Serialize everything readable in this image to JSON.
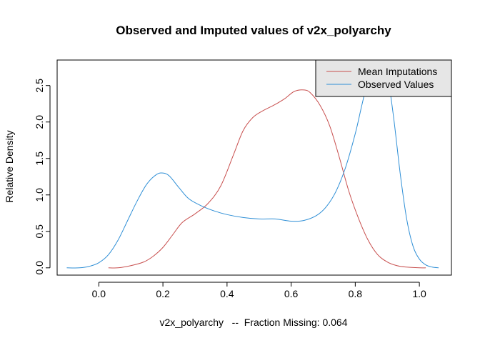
{
  "chart_data": {
    "type": "line",
    "title": "Observed and Imputed values of v2x_polyarchy",
    "xlabel": "v2x_polyarchy   --  Fraction Missing: 0.064",
    "ylabel": "Relative Density",
    "xlim": [
      -0.13,
      1.1
    ],
    "ylim": [
      -0.1,
      2.85
    ],
    "x_ticks": [
      0.0,
      0.2,
      0.4,
      0.6,
      0.8,
      1.0
    ],
    "x_tick_labels": [
      "0.0",
      "0.2",
      "0.4",
      "0.6",
      "0.8",
      "1.0"
    ],
    "y_ticks": [
      0.0,
      0.5,
      1.0,
      1.5,
      2.0,
      2.5
    ],
    "y_tick_labels": [
      "0.0",
      "0.5",
      "1.0",
      "1.5",
      "2.0",
      "2.5"
    ],
    "grid": false,
    "legend_position": "top-right",
    "series": [
      {
        "name": "Mean Imputations",
        "color": "#c8504f",
        "x": [
          0.03,
          0.06,
          0.1,
          0.14,
          0.17,
          0.2,
          0.23,
          0.26,
          0.3,
          0.34,
          0.38,
          0.42,
          0.45,
          0.48,
          0.51,
          0.55,
          0.58,
          0.61,
          0.64,
          0.66,
          0.69,
          0.72,
          0.75,
          0.78,
          0.81,
          0.84,
          0.87,
          0.9,
          0.93,
          0.96,
          1.0,
          1.02
        ],
        "y": [
          0.0,
          0.0,
          0.03,
          0.08,
          0.16,
          0.28,
          0.45,
          0.62,
          0.74,
          0.88,
          1.12,
          1.55,
          1.88,
          2.06,
          2.15,
          2.24,
          2.32,
          2.42,
          2.44,
          2.4,
          2.23,
          1.95,
          1.52,
          1.05,
          0.68,
          0.38,
          0.18,
          0.08,
          0.03,
          0.01,
          0.0,
          0.0
        ]
      },
      {
        "name": "Observed Values",
        "color": "#2f8fd6",
        "x": [
          -0.1,
          -0.06,
          -0.03,
          0.0,
          0.03,
          0.06,
          0.09,
          0.12,
          0.15,
          0.18,
          0.2,
          0.22,
          0.25,
          0.28,
          0.32,
          0.36,
          0.4,
          0.45,
          0.5,
          0.55,
          0.6,
          0.64,
          0.68,
          0.71,
          0.74,
          0.77,
          0.8,
          0.82,
          0.84,
          0.86,
          0.88,
          0.9,
          0.92,
          0.94,
          0.96,
          0.98,
          1.0,
          1.02,
          1.04,
          1.06
        ],
        "y": [
          0.0,
          0.0,
          0.02,
          0.07,
          0.18,
          0.38,
          0.65,
          0.92,
          1.15,
          1.28,
          1.3,
          1.26,
          1.1,
          0.95,
          0.85,
          0.78,
          0.73,
          0.69,
          0.67,
          0.67,
          0.64,
          0.65,
          0.72,
          0.84,
          1.05,
          1.38,
          1.84,
          2.22,
          2.58,
          2.8,
          2.85,
          2.65,
          2.05,
          1.3,
          0.68,
          0.3,
          0.12,
          0.04,
          0.01,
          0.0
        ]
      }
    ]
  }
}
